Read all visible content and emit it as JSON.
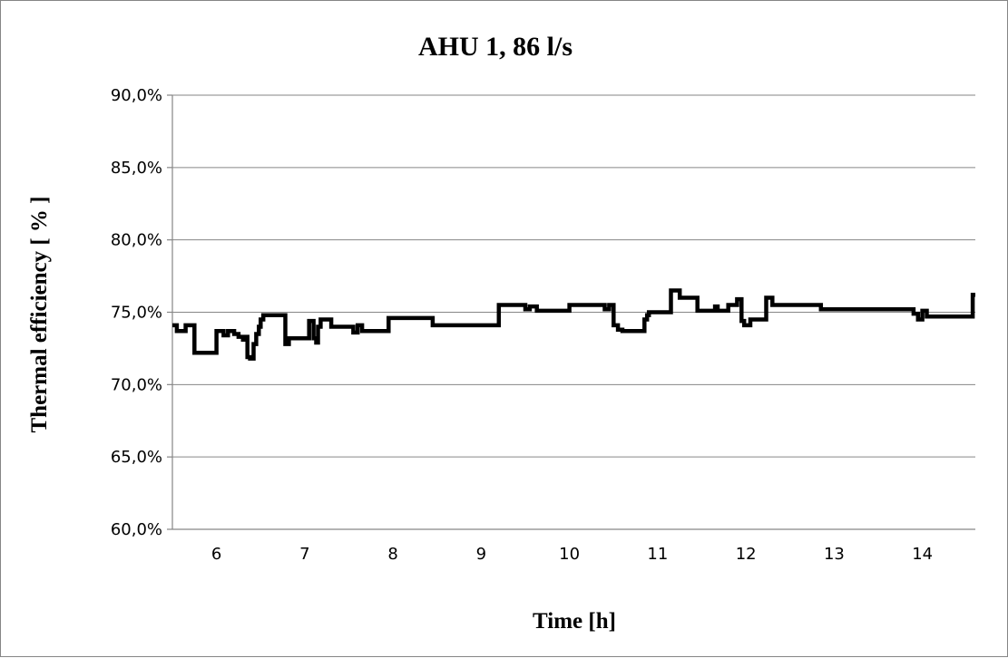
{
  "chart_data": {
    "type": "line",
    "title": "AHU 1, 86 l/s",
    "xlabel": "Time [h]",
    "ylabel": "Thermal efficiency [ % ]",
    "xlim": [
      5.5,
      14.6
    ],
    "ylim": [
      0.6,
      0.9
    ],
    "x_ticks": [
      6,
      7,
      8,
      9,
      10,
      11,
      12,
      13,
      14
    ],
    "y_ticks": [
      0.6,
      0.65,
      0.7,
      0.75,
      0.8,
      0.85,
      0.9
    ],
    "y_tick_labels": [
      "60,0%",
      "65,0%",
      "70,0%",
      "75,0%",
      "80,0%",
      "85,0%",
      "90,0%"
    ],
    "grid": "horizontal",
    "legend": "none",
    "line_style": "step",
    "series": [
      {
        "color": "#000000",
        "x": [
          5.5,
          5.55,
          5.65,
          5.75,
          5.78,
          6.0,
          6.08,
          6.13,
          6.2,
          6.25,
          6.3,
          6.33,
          6.35,
          6.38,
          6.42,
          6.45,
          6.48,
          6.5,
          6.53,
          6.78,
          6.82,
          7.05,
          7.1,
          7.13,
          7.15,
          7.18,
          7.22,
          7.3,
          7.35,
          7.55,
          7.6,
          7.65,
          7.95,
          8.45,
          9.2,
          9.5,
          9.55,
          9.63,
          9.7,
          10.0,
          10.4,
          10.45,
          10.5,
          10.55,
          10.6,
          10.85,
          10.88,
          10.9,
          11.15,
          11.25,
          11.45,
          11.6,
          11.65,
          11.68,
          11.73,
          11.8,
          11.9,
          11.95,
          11.98,
          12.05,
          12.2,
          12.23,
          12.3,
          12.33,
          12.85,
          13.9,
          13.95,
          14.0,
          14.05,
          14.57,
          14.6
        ],
        "y": [
          0.741,
          0.737,
          0.741,
          0.722,
          0.722,
          0.737,
          0.734,
          0.737,
          0.735,
          0.733,
          0.731,
          0.733,
          0.719,
          0.718,
          0.728,
          0.735,
          0.74,
          0.745,
          0.748,
          0.728,
          0.732,
          0.744,
          0.732,
          0.729,
          0.74,
          0.745,
          0.745,
          0.74,
          0.74,
          0.736,
          0.741,
          0.737,
          0.746,
          0.741,
          0.755,
          0.752,
          0.754,
          0.751,
          0.751,
          0.755,
          0.752,
          0.755,
          0.741,
          0.738,
          0.737,
          0.745,
          0.748,
          0.75,
          0.765,
          0.76,
          0.751,
          0.751,
          0.754,
          0.751,
          0.751,
          0.755,
          0.759,
          0.744,
          0.741,
          0.745,
          0.745,
          0.76,
          0.755,
          0.755,
          0.752,
          0.749,
          0.745,
          0.751,
          0.747,
          0.762,
          0.762
        ]
      }
    ]
  }
}
